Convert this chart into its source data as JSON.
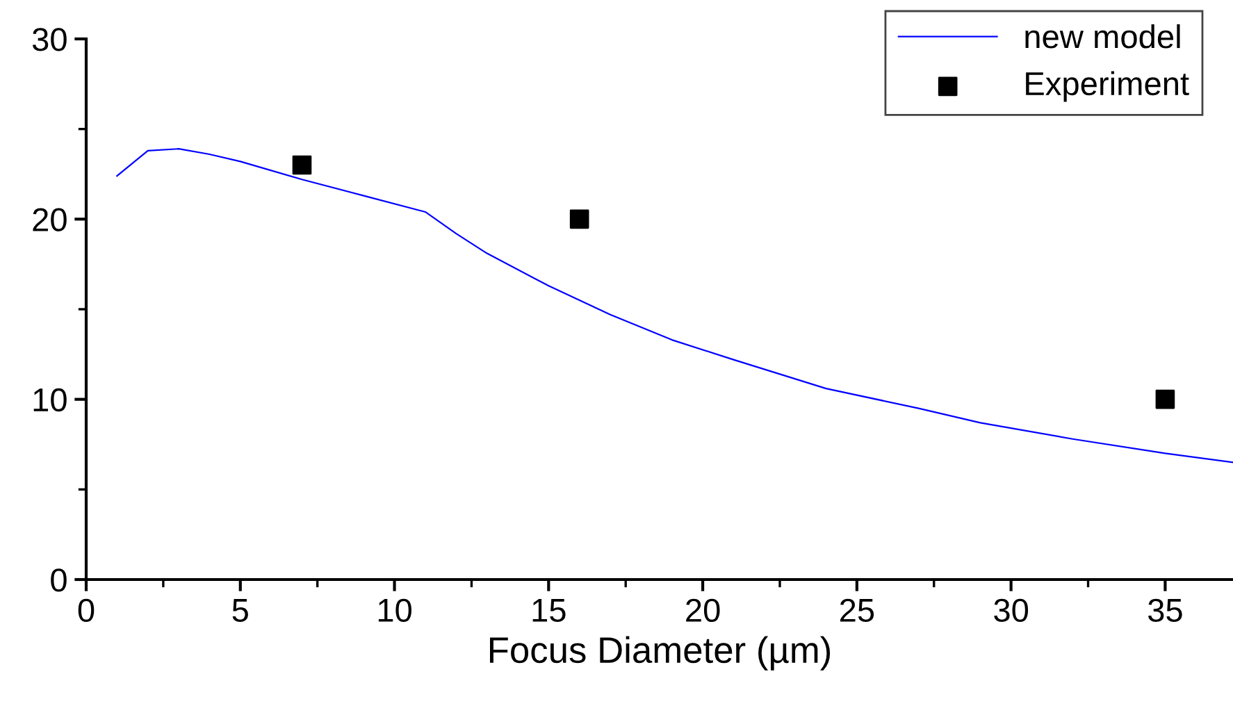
{
  "chart_data": {
    "type": "line",
    "xlabel": "Focus Diameter (µm)",
    "xlim": [
      0,
      37.2
    ],
    "ylim": [
      0,
      30
    ],
    "xticks": [
      0,
      5,
      10,
      15,
      20,
      25,
      30,
      35
    ],
    "yticks": [
      0,
      10,
      20,
      30
    ],
    "grid": false,
    "legend": "top right",
    "series": [
      {
        "name": "new model",
        "color": "#0000ff",
        "marker": "none",
        "line_style": "solid",
        "x": [
          1,
          2,
          3,
          4,
          5,
          7,
          9,
          11,
          12,
          13,
          15,
          17,
          19,
          21,
          24,
          27,
          29,
          32,
          35,
          37.2
        ],
        "values": [
          22.4,
          23.8,
          23.9,
          23.6,
          23.2,
          22.2,
          21.3,
          20.4,
          19.2,
          18.1,
          16.3,
          14.7,
          13.3,
          12.2,
          10.6,
          9.5,
          8.7,
          7.8,
          7.0,
          6.5
        ]
      },
      {
        "name": "Experiment",
        "type": "scatter",
        "color": "#000000",
        "marker": "square",
        "x": [
          7,
          16,
          35
        ],
        "values": [
          23,
          20,
          10
        ]
      }
    ]
  }
}
